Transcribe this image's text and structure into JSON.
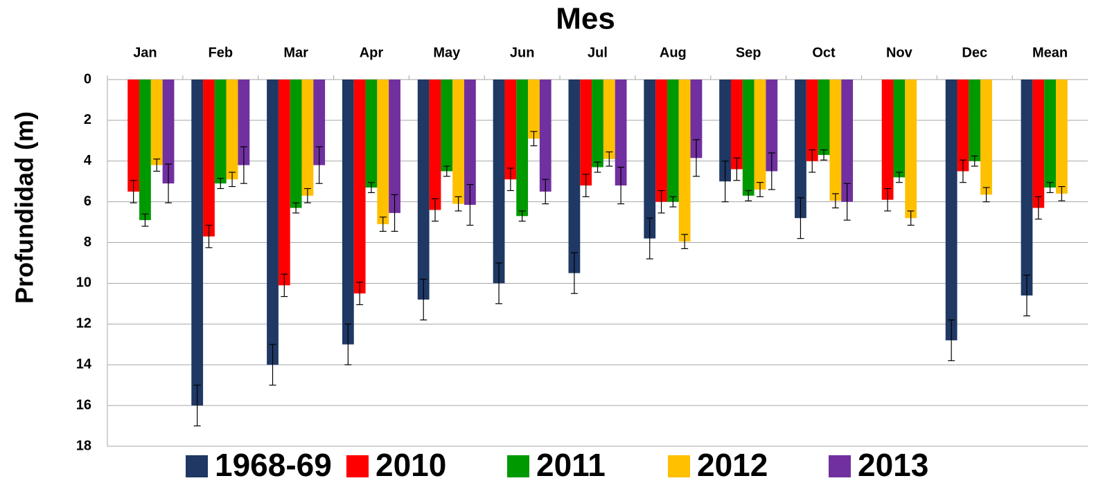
{
  "chart_data": {
    "type": "bar",
    "title": "Mes",
    "y_label": "Profundidad (m)",
    "categories": [
      "Jan",
      "Feb",
      "Mar",
      "Apr",
      "May",
      "Jun",
      "Jul",
      "Aug",
      "Sep",
      "Oct",
      "Nov",
      "Dec",
      "Mean"
    ],
    "series": [
      {
        "name": "1968-69",
        "color": "#1f3864",
        "values": [
          null,
          16,
          14,
          13,
          10.8,
          10,
          9.5,
          7.8,
          5,
          6.8,
          null,
          12.8,
          10.6
        ],
        "errors": [
          null,
          1,
          1,
          1,
          1,
          1,
          1,
          1,
          1,
          1,
          null,
          1,
          1
        ]
      },
      {
        "name": "2010",
        "color": "#ff0000",
        "values": [
          5.5,
          7.7,
          10.1,
          10.5,
          6.4,
          4.9,
          5.2,
          6,
          4.4,
          4,
          5.9,
          4.5,
          6.3
        ],
        "errors": [
          0.55,
          0.55,
          0.55,
          0.55,
          0.55,
          0.55,
          0.55,
          0.55,
          0.55,
          0.55,
          0.55,
          0.55,
          0.55
        ]
      },
      {
        "name": "2011",
        "color": "#009900",
        "values": [
          6.9,
          5.1,
          6.3,
          5.3,
          4.5,
          6.7,
          4.3,
          6,
          5.7,
          3.7,
          4.8,
          4,
          5.3
        ],
        "errors": [
          0.3,
          0.25,
          0.25,
          0.25,
          0.25,
          0.25,
          0.25,
          0.25,
          0.25,
          0.25,
          0.25,
          0.25,
          0.25
        ]
      },
      {
        "name": "2012",
        "color": "#ffc000",
        "values": [
          4.2,
          4.9,
          5.7,
          7.1,
          6.1,
          2.9,
          3.9,
          7.95,
          5.4,
          5.95,
          6.8,
          5.65,
          5.6
        ],
        "errors": [
          0.3,
          0.35,
          0.35,
          0.35,
          0.35,
          0.35,
          0.35,
          0.35,
          0.35,
          0.35,
          0.35,
          0.35,
          0.35
        ]
      },
      {
        "name": "2013",
        "color": "#7030a0",
        "values": [
          5.1,
          4.2,
          4.2,
          6.55,
          6.15,
          5.5,
          5.2,
          3.85,
          4.5,
          6,
          null,
          null,
          null
        ],
        "errors": [
          0.95,
          0.9,
          0.9,
          0.9,
          1,
          0.6,
          0.9,
          0.9,
          0.9,
          0.9,
          null,
          null,
          null
        ]
      }
    ],
    "ylim": [
      0,
      18
    ],
    "yticks": [
      0,
      2,
      4,
      6,
      8,
      10,
      12,
      14,
      16,
      18
    ],
    "y_inverted": true,
    "grid": true
  }
}
